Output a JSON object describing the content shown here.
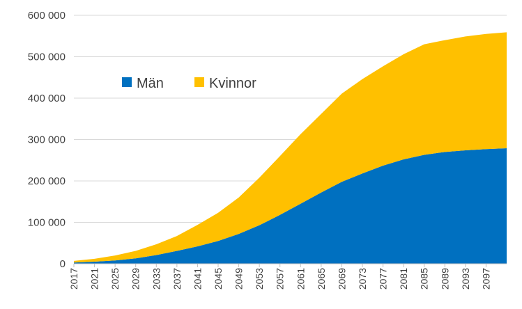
{
  "chart_data": {
    "type": "area",
    "stacked": true,
    "grid": "horizontal",
    "legend_position": "upper-left inside plot",
    "ylim": [
      0,
      600000
    ],
    "y_ticks": [
      0,
      100000,
      200000,
      300000,
      400000,
      500000,
      600000
    ],
    "y_tick_labels": [
      "0",
      "100 000",
      "200 000",
      "300 000",
      "400 000",
      "500 000",
      "600 000"
    ],
    "x_tick_labels": [
      "2017",
      "2021",
      "2025",
      "2029",
      "2033",
      "2037",
      "2041",
      "2045",
      "2049",
      "2053",
      "2057",
      "2061",
      "2065",
      "2069",
      "2073",
      "2077",
      "2081",
      "2085",
      "2089",
      "2093",
      "2097"
    ],
    "x": [
      2017,
      2021,
      2025,
      2029,
      2033,
      2037,
      2041,
      2045,
      2049,
      2053,
      2057,
      2061,
      2065,
      2069,
      2073,
      2077,
      2081,
      2085,
      2089,
      2093,
      2097,
      2101
    ],
    "series": [
      {
        "name": "Män",
        "color": "#0070C0",
        "values": [
          3000,
          5000,
          8000,
          13000,
          21000,
          31000,
          42000,
          55000,
          72000,
          93000,
          118000,
          145000,
          172000,
          198000,
          218000,
          237000,
          252000,
          263000,
          270000,
          274000,
          277000,
          279000
        ]
      },
      {
        "name": "Kvinnor",
        "color": "#FFC000",
        "values": [
          4000,
          7000,
          12000,
          18000,
          26000,
          36000,
          52000,
          68000,
          88000,
          115000,
          142000,
          168000,
          190000,
          213000,
          228000,
          240000,
          254000,
          267000,
          270000,
          275000,
          278000,
          280000
        ]
      }
    ]
  }
}
